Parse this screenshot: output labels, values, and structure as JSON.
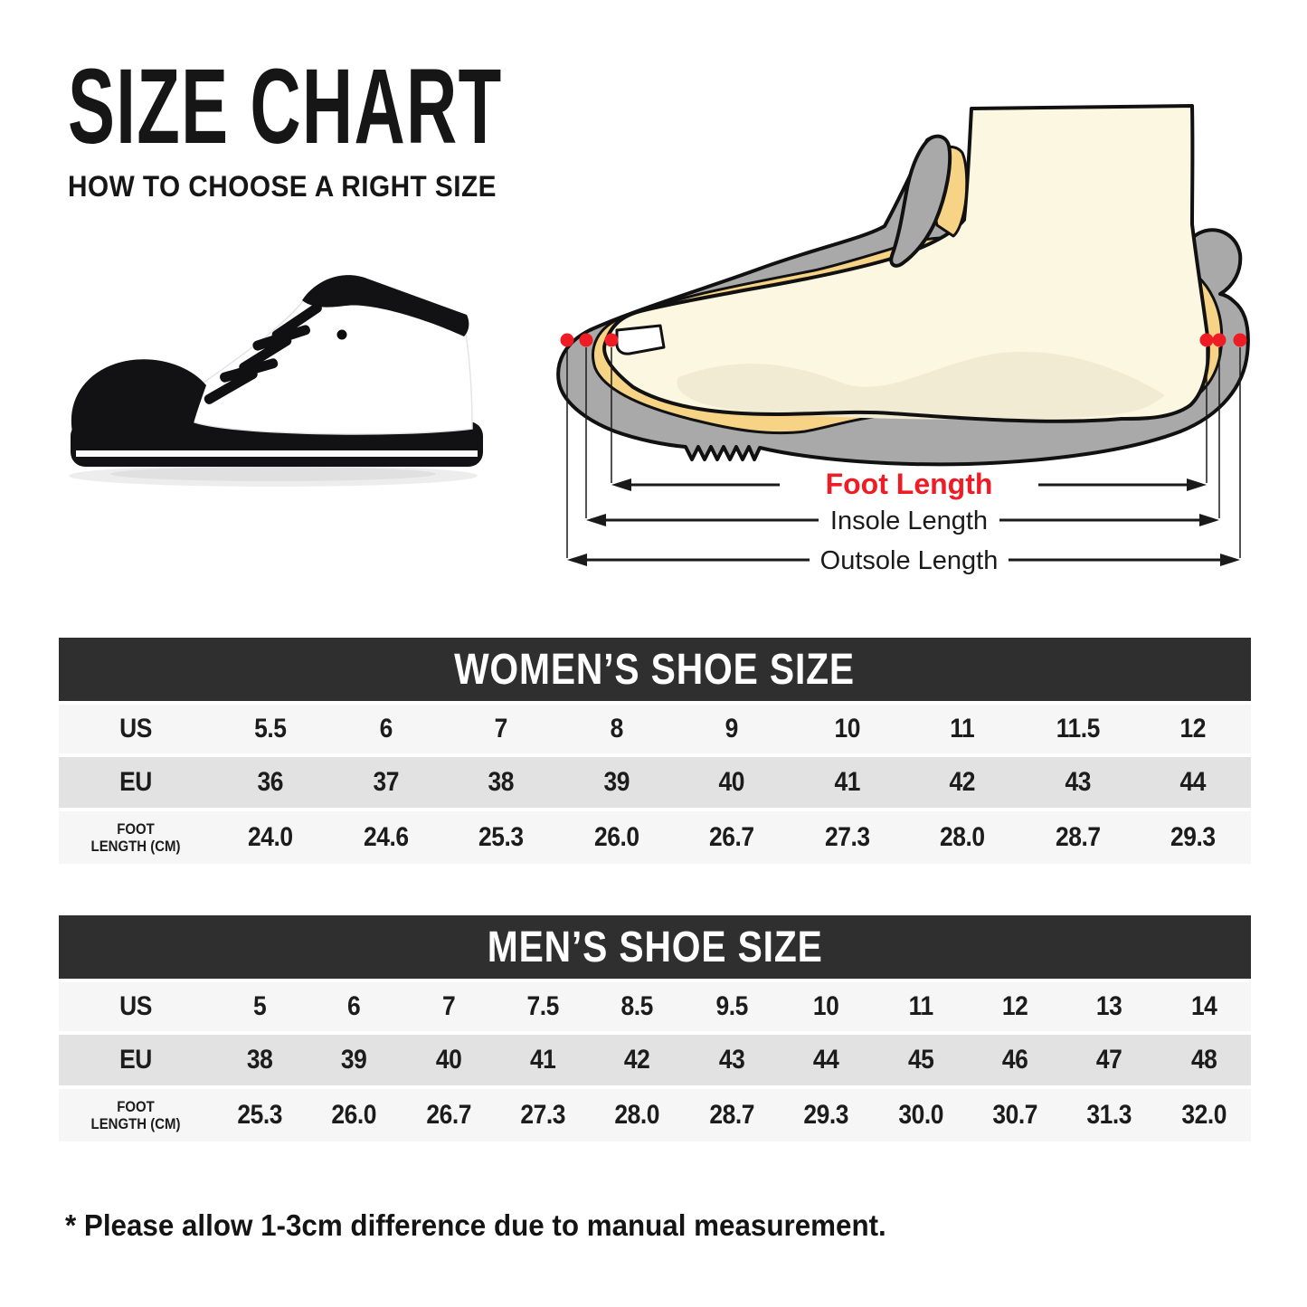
{
  "page": {
    "title": "SIZE CHART",
    "subtitle": "HOW TO CHOOSE A RIGHT SIZE",
    "footnote": "* Please allow 1-3cm difference due to manual measurement."
  },
  "diagram": {
    "foot_length_label": "Foot Length",
    "insole_length_label": "Insole Length",
    "outsole_length_label": "Outsole Length",
    "colors": {
      "shoe_gray": "#a9a9a9",
      "insole_yellow": "#f6d385",
      "foot_cream": "#fcf7e0",
      "foot_shade": "#f1ebd3",
      "marker_red": "#ee1c25",
      "outline_black": "#111111"
    }
  },
  "tables": {
    "women": {
      "title": "WOMEN’S SHOE SIZE",
      "rows": [
        {
          "label_lines": [
            "US"
          ],
          "values": [
            "5.5",
            "6",
            "7",
            "8",
            "9",
            "10",
            "11",
            "11.5",
            "12"
          ]
        },
        {
          "label_lines": [
            "EU"
          ],
          "values": [
            "36",
            "37",
            "38",
            "39",
            "40",
            "41",
            "42",
            "43",
            "44"
          ]
        },
        {
          "label_lines": [
            "FOOT",
            "LENGTH (CM)"
          ],
          "values": [
            "24.0",
            "24.6",
            "25.3",
            "26.0",
            "26.7",
            "27.3",
            "28.0",
            "28.7",
            "29.3"
          ]
        }
      ]
    },
    "men": {
      "title": "MEN’S SHOE SIZE",
      "rows": [
        {
          "label_lines": [
            "US"
          ],
          "values": [
            "5",
            "6",
            "7",
            "7.5",
            "8.5",
            "9.5",
            "10",
            "11",
            "12",
            "13",
            "14"
          ]
        },
        {
          "label_lines": [
            "EU"
          ],
          "values": [
            "38",
            "39",
            "40",
            "41",
            "42",
            "43",
            "44",
            "45",
            "46",
            "47",
            "48"
          ]
        },
        {
          "label_lines": [
            "FOOT",
            "LENGTH (CM)"
          ],
          "values": [
            "25.3",
            "26.0",
            "26.7",
            "27.3",
            "28.0",
            "28.7",
            "29.3",
            "30.0",
            "30.7",
            "31.3",
            "32.0"
          ]
        }
      ]
    }
  },
  "theme": {
    "header_band": "#2f2f2f",
    "row_light": "#f6f6f6",
    "row_gray": "#e2e2e2",
    "text_dark": "#1b1b1b"
  }
}
